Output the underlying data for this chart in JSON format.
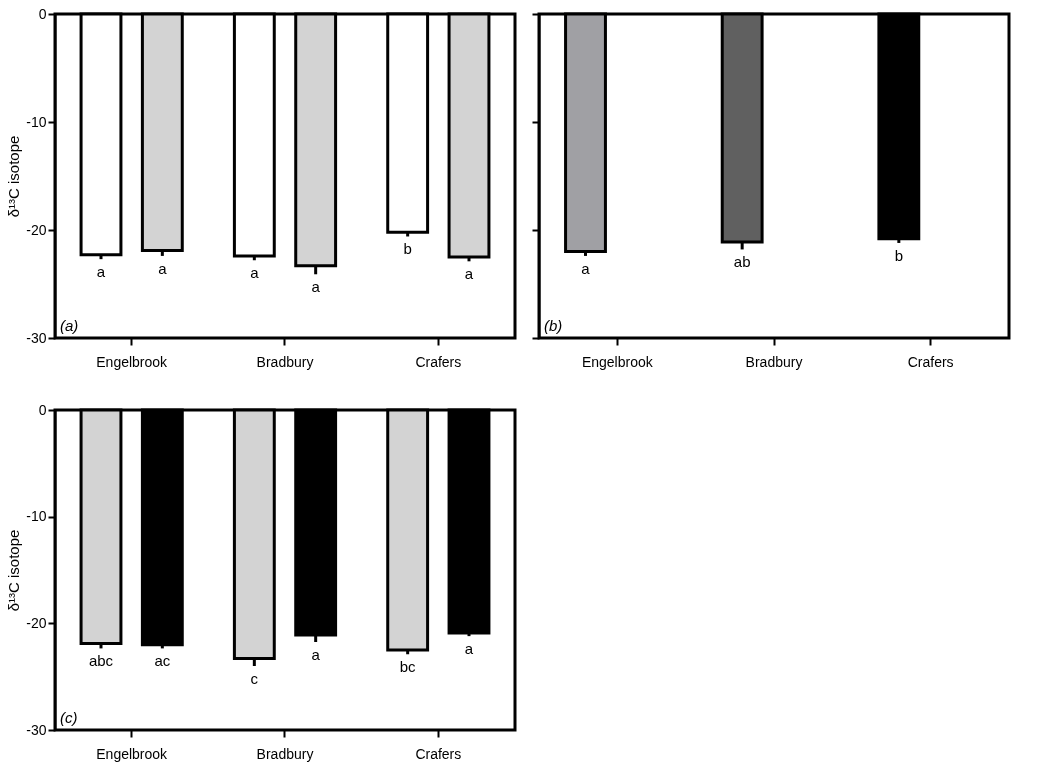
{
  "chart_data": [
    {
      "type": "bar",
      "categories": [
        "Engelbrook",
        "Bradbury",
        "Crafers"
      ],
      "ylabel": "δ¹³C isotope",
      "ylim": [
        -30,
        0
      ],
      "yticks": [
        -30,
        -20,
        -10,
        0
      ],
      "grid": false,
      "annotations": [
        "(a)"
      ],
      "series": [
        {
          "color": "#ffffff",
          "values": [
            -22.3,
            -22.4,
            -20.2
          ],
          "errors": [
            [
              -22.7,
              -22.3
            ],
            [
              -22.8,
              -22.4
            ],
            [
              -20.6,
              -20.2
            ]
          ],
          "value_labels": [
            "a",
            "a",
            "b"
          ]
        },
        {
          "color": "#d3d3d3",
          "values": [
            -21.9,
            -23.3,
            -22.5
          ],
          "errors": [
            [
              -22.4,
              -21.9
            ],
            [
              -24.1,
              -23.3
            ],
            [
              -22.9,
              -22.5
            ]
          ],
          "value_labels": [
            "a",
            "a",
            "a"
          ]
        }
      ]
    },
    {
      "type": "bar",
      "categories": [
        "Engelbrook",
        "Bradbury",
        "Crafers"
      ],
      "ylim": [
        -30,
        0
      ],
      "yticks": [
        {
          "value": -30,
          "label": null
        },
        {
          "value": -20,
          "label": null
        },
        {
          "value": -10,
          "label": null
        },
        {
          "value": 0,
          "label": null
        }
      ],
      "tick_labels": "x",
      "grid": false,
      "annotations": [
        "(b)"
      ],
      "series": [
        {
          "colors": [
            "#a0a0a4",
            "#606060",
            "#000000"
          ],
          "values": [
            -22.0,
            -21.1,
            -20.8
          ],
          "errors": [
            [
              -22.4,
              -22.0
            ],
            [
              -21.8,
              -21.1
            ],
            [
              -21.2,
              -20.8
            ]
          ],
          "value_labels": [
            "a",
            "ab",
            "b"
          ]
        }
      ]
    },
    {
      "type": "bar",
      "categories": [
        "Engelbrook",
        "Bradbury",
        "Crafers"
      ],
      "ylabel": "δ¹³C isotope",
      "ylim": [
        -30,
        0
      ],
      "yticks": [
        -30,
        -20,
        -10,
        0
      ],
      "grid": false,
      "annotations": [
        "(c)"
      ],
      "series": [
        {
          "color": "#d3d3d3",
          "values": [
            -21.9,
            -23.3,
            -22.5
          ],
          "errors": [
            [
              -22.35,
              -21.9
            ],
            [
              -24.0,
              -23.3
            ],
            [
              -22.9,
              -22.5
            ]
          ],
          "value_labels": [
            "abc",
            "c",
            "bc"
          ]
        },
        {
          "color": "#000000",
          "values": [
            -22.0,
            -21.1,
            -20.9
          ],
          "errors": [
            [
              -22.35,
              -22.0
            ],
            [
              -21.75,
              -21.1
            ],
            [
              -21.2,
              -20.9
            ]
          ],
          "value_labels": [
            "ac",
            "a",
            "a"
          ]
        }
      ]
    }
  ]
}
